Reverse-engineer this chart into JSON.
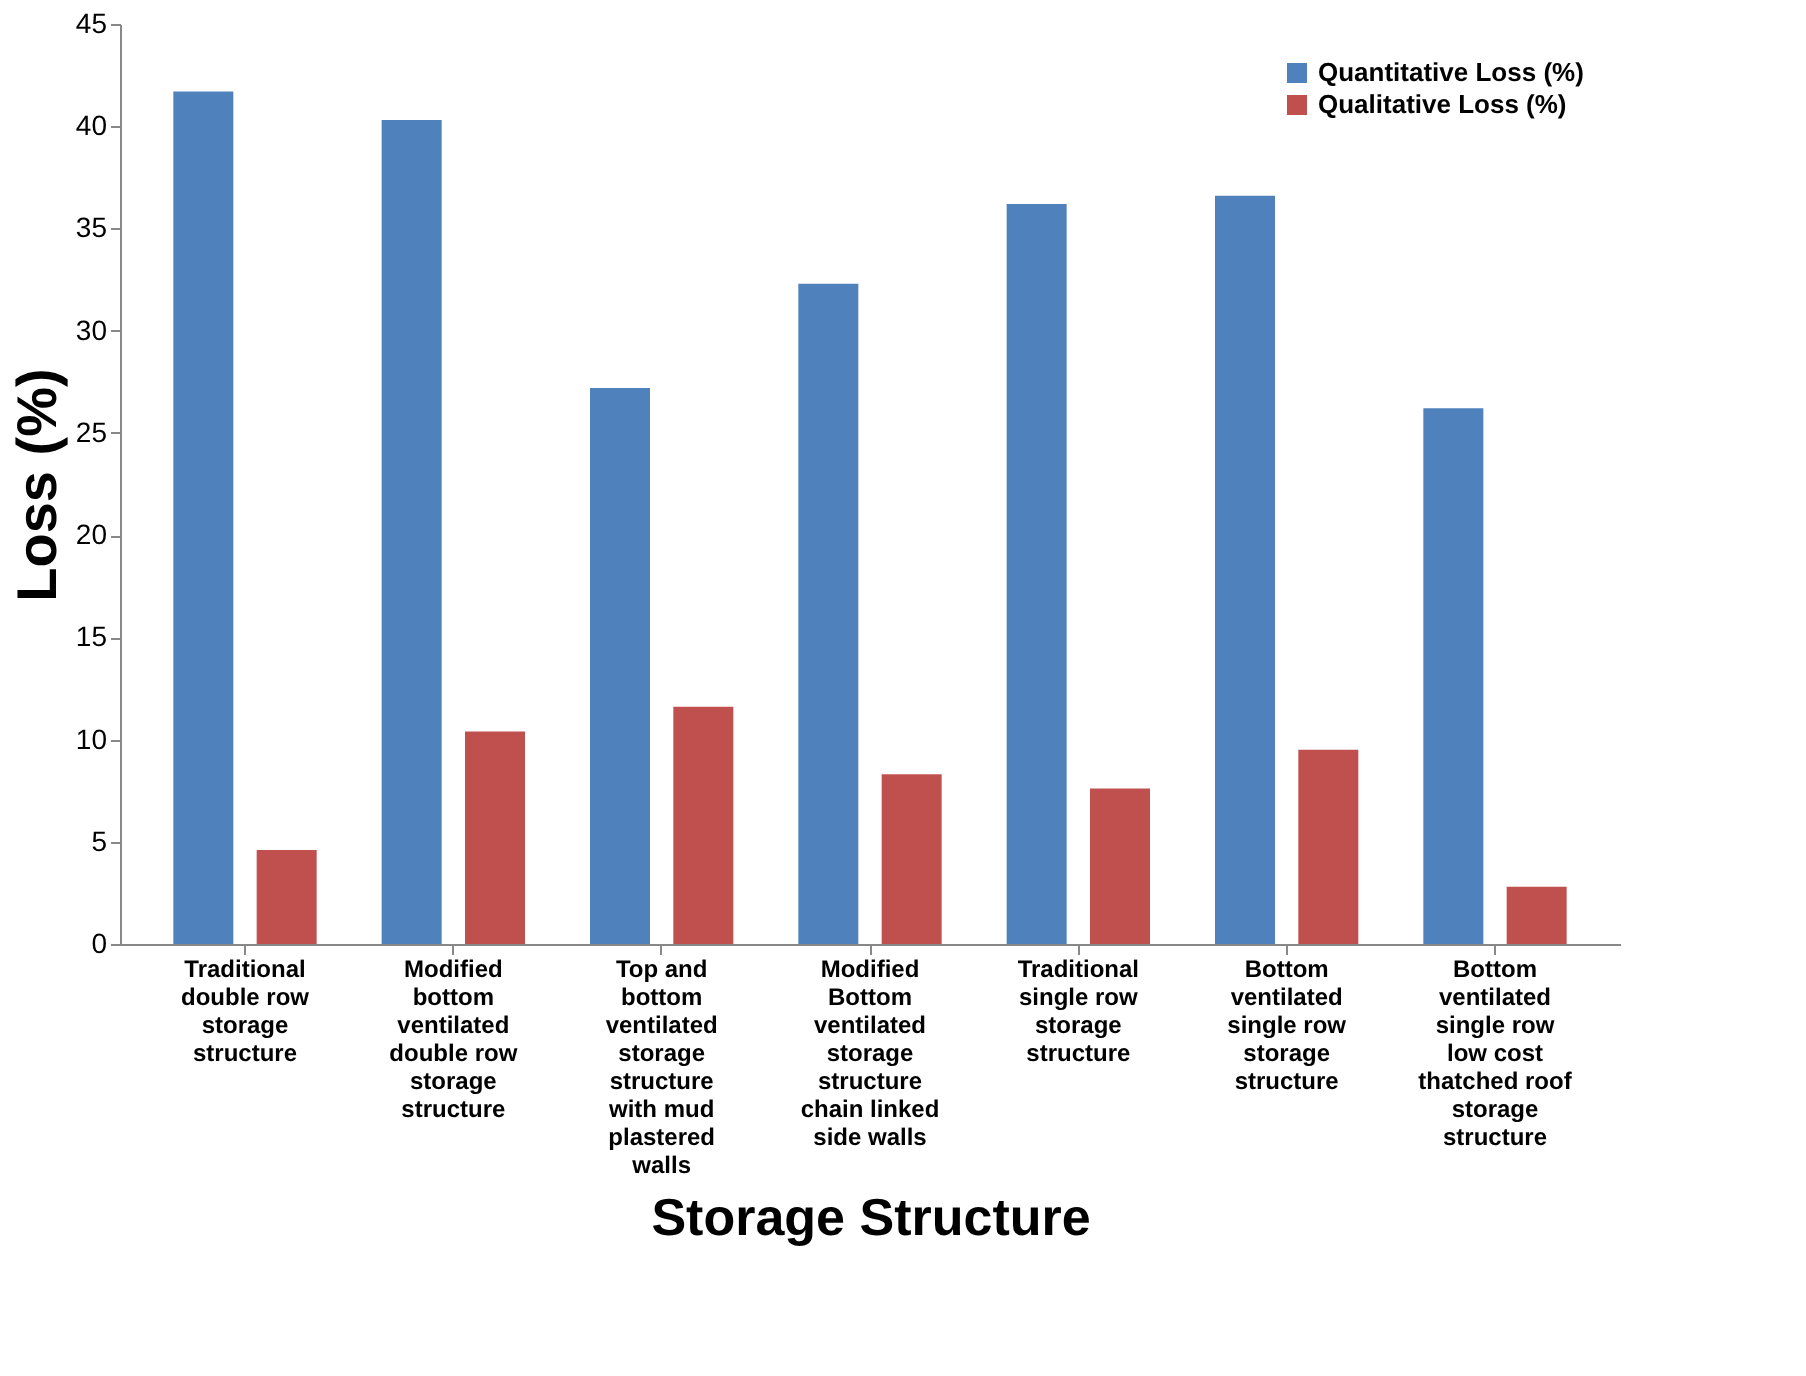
{
  "chart_data": {
    "type": "bar",
    "xlabel": "Storage Structure",
    "ylabel": "Loss (%)",
    "categories": [
      "Traditional double row storage structure",
      "Modified bottom ventilated double row storage structure",
      "Top and bottom ventilated storage structure with mud plastered walls",
      "Modified Bottom ventilated storage structure chain linked side walls",
      "Traditional single row storage structure",
      "Bottom ventilated single row storage structure",
      "Bottom ventilated single row low cost thatched roof storage structure"
    ],
    "series": [
      {
        "name": "Quantitative Loss (%)",
        "color": "#4f81bd",
        "values": [
          41.7,
          40.3,
          27.2,
          32.3,
          36.2,
          36.6,
          26.2
        ]
      },
      {
        "name": "Qualitative Loss (%)",
        "color": "#c0504d",
        "values": [
          4.6,
          10.4,
          11.6,
          8.3,
          7.6,
          9.5,
          2.8
        ]
      }
    ],
    "ylim": [
      0,
      45
    ],
    "yticks": [
      0,
      5,
      10,
      15,
      20,
      25,
      30,
      35,
      40,
      45
    ],
    "grid": false,
    "legend": "top right"
  }
}
